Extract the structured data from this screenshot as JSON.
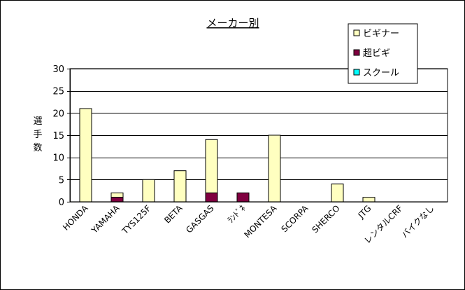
{
  "chart_data": {
    "type": "bar",
    "stacked": true,
    "title": "メーカー別",
    "ylabel": "選手数",
    "xlabel": "",
    "ylim": [
      0,
      30
    ],
    "yticks": [
      0,
      5,
      10,
      15,
      20,
      25,
      30
    ],
    "grid": true,
    "legend_position": "top-right",
    "categories": [
      "HONDA",
      "YAMAHA",
      "TYS125F",
      "BETA",
      "GASGAS",
      "ﾗﾝﾄﾞﾈ",
      "MONTESA",
      "SCORPA",
      "SHERCO",
      "JTG",
      "レンタルCRF",
      "バイクなし"
    ],
    "series": [
      {
        "name": "超ビギ",
        "color": "#800040",
        "values": [
          0,
          1,
          0,
          0,
          2,
          2,
          0,
          0,
          0,
          0,
          0,
          0
        ]
      },
      {
        "name": "ビギナー",
        "color": "#ffffc0",
        "values": [
          21,
          1,
          5,
          7,
          12,
          0,
          15,
          0,
          4,
          1,
          0,
          0
        ]
      },
      {
        "name": "スクール",
        "color": "#00ffff",
        "values": [
          0,
          0,
          0,
          0,
          0,
          0,
          0,
          0,
          0,
          0,
          0,
          0
        ]
      }
    ],
    "legend_order": [
      "ビギナー",
      "超ビギ",
      "スクール"
    ]
  }
}
